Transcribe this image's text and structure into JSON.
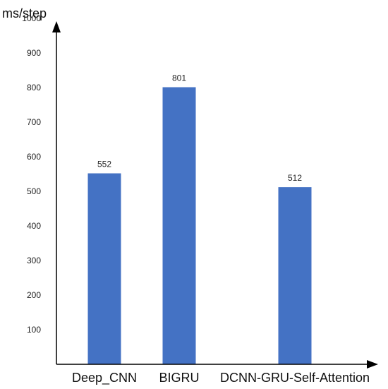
{
  "chart_data": {
    "type": "bar",
    "categories": [
      "Deep_CNN",
      "BIGRU",
      "DCNN-GRU-Self-Attention"
    ],
    "values": [
      552,
      801,
      512
    ],
    "data_labels": [
      "552",
      "801",
      "512"
    ],
    "ylabel": "ms/step",
    "xlabel": "",
    "title": "",
    "ylim": [
      0,
      1000
    ],
    "y_ticks": [
      100,
      200,
      300,
      400,
      500,
      600,
      700,
      800,
      900,
      1000
    ],
    "grid": false,
    "legend": "none",
    "bar_color": "#4472c4",
    "axis_color": "#000000"
  }
}
